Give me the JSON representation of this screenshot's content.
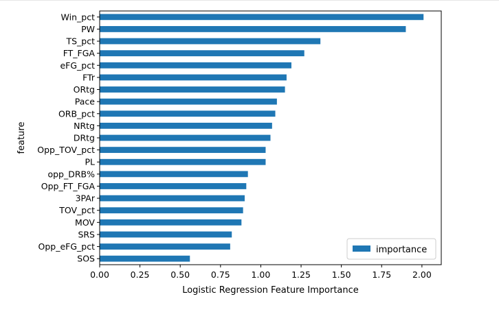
{
  "chart_data": {
    "type": "bar",
    "orientation": "horizontal",
    "categories": [
      "Win_pct",
      "PW",
      "TS_pct",
      "FT_FGA",
      "eFG_pct",
      "FTr",
      "ORtg",
      "Pace",
      "ORB_pct",
      "NRtg",
      "DRtg",
      "Opp_TOV_pct",
      "PL",
      "opp_DRB%",
      "Opp_FT_FGA",
      "3PAr",
      "TOV_pct",
      "MOV",
      "SRS",
      "Opp_eFG_pct",
      "SOS"
    ],
    "series": [
      {
        "name": "importance",
        "values": [
          2.01,
          1.9,
          1.37,
          1.27,
          1.19,
          1.16,
          1.15,
          1.1,
          1.09,
          1.07,
          1.06,
          1.03,
          1.03,
          0.92,
          0.91,
          0.9,
          0.89,
          0.88,
          0.82,
          0.81,
          0.56
        ]
      }
    ],
    "xlabel": "Logistic Regression Feature Importance",
    "ylabel": "feature",
    "xlim": [
      0.0,
      2.12
    ],
    "xticks": [
      "0.00",
      "0.25",
      "0.50",
      "0.75",
      "1.00",
      "1.25",
      "1.50",
      "1.75",
      "2.00"
    ],
    "legend": "lower-right",
    "grid": false,
    "bar_color": "#1f77b4"
  }
}
